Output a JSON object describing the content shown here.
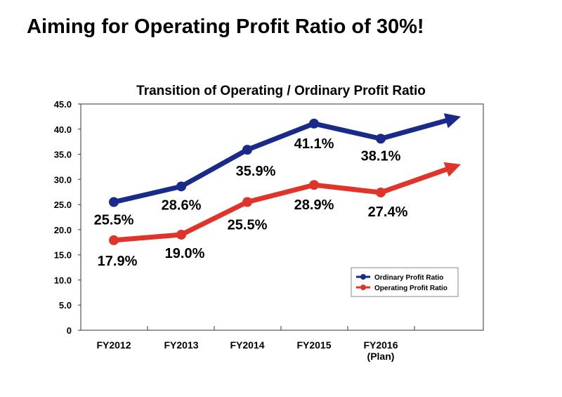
{
  "page": {
    "title": "Aiming for Operating Profit Ratio of 30%!"
  },
  "chart_data": {
    "type": "line",
    "title": "Transition of Operating / Ordinary Profit Ratio",
    "categories": [
      "FY2012",
      "FY2013",
      "FY2014",
      "FY2015",
      "FY2016"
    ],
    "category_sublabels": [
      "",
      "",
      "",
      "",
      "(Plan)"
    ],
    "y_ticks": [
      "0",
      "5.0",
      "10.0",
      "15.0",
      "20.0",
      "25.0",
      "30.0",
      "35.0",
      "40.0",
      "45.0"
    ],
    "ylim": [
      0,
      45
    ],
    "xlabel": "",
    "ylabel": "",
    "grid": false,
    "legend_position": "bottom-right",
    "series": [
      {
        "name": "Ordinary Profit Ratio",
        "color": "#1a2a8a",
        "values": [
          25.5,
          28.6,
          35.9,
          41.1,
          38.1
        ],
        "labels": [
          "25.5%",
          "28.6%",
          "35.9%",
          "41.1%",
          "38.1%"
        ],
        "arrow_target": 42.5
      },
      {
        "name": "Operating Profit Ratio",
        "color": "#e0342a",
        "values": [
          17.9,
          19.0,
          25.5,
          28.9,
          27.4
        ],
        "labels": [
          "17.9%",
          "19.0%",
          "25.5%",
          "28.9%",
          "27.4%"
        ],
        "arrow_target": 33.0
      }
    ]
  }
}
